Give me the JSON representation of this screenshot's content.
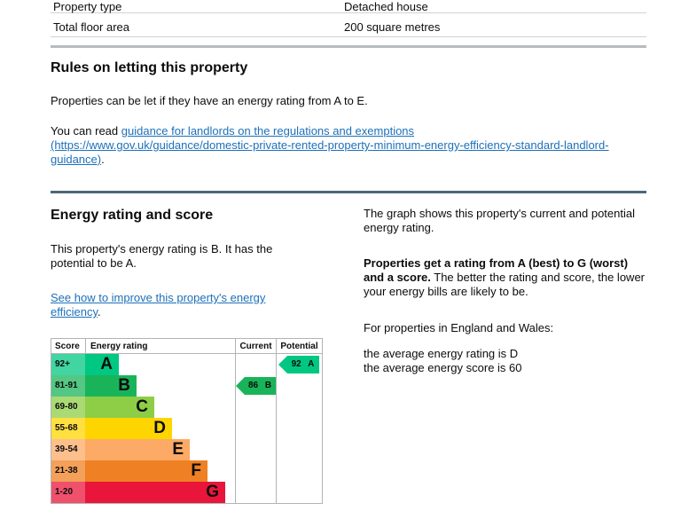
{
  "property_table": {
    "rows": [
      {
        "label": "Property type",
        "value": "Detached house"
      },
      {
        "label": "Total floor area",
        "value": "200 square metres"
      }
    ]
  },
  "rules_section": {
    "heading": "Rules on letting this property",
    "paragraph1": "Properties can be let if they have an energy rating from A to E.",
    "paragraph2_prefix": "You can read ",
    "guidance_link_text": "guidance for landlords on the regulations and exemptions (https://www.gov.uk/guidance/domestic-private-rented-property-minimum-energy-efficiency-standard-landlord-guidance)",
    "paragraph2_suffix": "."
  },
  "energy_section": {
    "heading": "Energy rating and score",
    "intro": "This property's energy rating is B. It has the potential to be A.",
    "improve_link_text": "See how to improve this property's energy efficiency",
    "improve_link_suffix": ".",
    "right_column": {
      "p1": "The graph shows this property's current and potential energy rating.",
      "p2_bold": "Properties get a rating from A (best) to G (worst) and a score.",
      "p2_rest": " The better the rating and score, the lower your energy bills are likely to be.",
      "p3": "For properties in England and Wales:",
      "p4_line1": "the average energy rating is D",
      "p4_line2": "the average energy score is 60"
    }
  },
  "colors": {
    "link_blue": "#1d70b8",
    "band_a": "#00c781",
    "band_b": "#19b459",
    "band_c": "#8dce46",
    "band_d": "#ffd500",
    "band_e": "#fcaa65",
    "band_f": "#ef8023",
    "band_g": "#e9153b"
  },
  "chart_data": {
    "type": "epc-rating-graph",
    "headers": {
      "score": "Score",
      "energy_rating": "Energy rating",
      "current": "Current",
      "potential": "Potential"
    },
    "bands": [
      {
        "score": "92+",
        "letter": "A",
        "color": "#00c781"
      },
      {
        "score": "81-91",
        "letter": "B",
        "color": "#19b459"
      },
      {
        "score": "69-80",
        "letter": "C",
        "color": "#8dce46"
      },
      {
        "score": "55-68",
        "letter": "D",
        "color": "#ffd500"
      },
      {
        "score": "39-54",
        "letter": "E",
        "color": "#fcaa65"
      },
      {
        "score": "21-38",
        "letter": "F",
        "color": "#ef8023"
      },
      {
        "score": "1-20",
        "letter": "G",
        "color": "#e9153b"
      }
    ],
    "current": {
      "label": "86 B",
      "score": 86,
      "band": "B",
      "row_index": 1,
      "color": "#19b459"
    },
    "potential": {
      "label": "92 A",
      "score": 92,
      "band": "A",
      "row_index": 0,
      "color": "#00c781"
    }
  }
}
